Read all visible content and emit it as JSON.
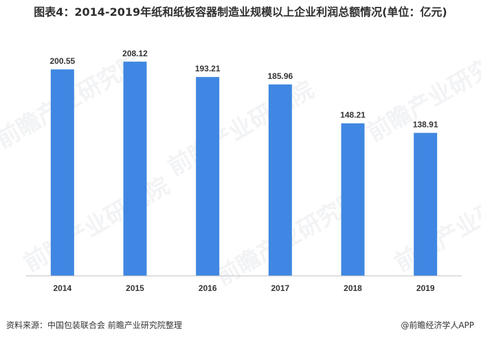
{
  "title": "图表4：2014-2019年纸和纸板容器制造业规模以上企业利润总额情况(单位：亿元)",
  "footer": {
    "source": "资料来源：中国包装联合会 前瞻产业研究院整理",
    "brand": "@前瞻经济学人APP"
  },
  "watermark": "前瞻产业研究院",
  "colors": {
    "bar": "#3f87e2",
    "axis": "#bfbfbf",
    "label": "#333333"
  },
  "chart_data": {
    "type": "bar",
    "title": "图表4：2014-2019年纸和纸板容器制造业规模以上企业利润总额情况(单位：亿元)",
    "categories": [
      "2014",
      "2015",
      "2016",
      "2017",
      "2018",
      "2019"
    ],
    "values": [
      200.55,
      208.12,
      193.21,
      185.96,
      148.21,
      138.91
    ],
    "data_labels": [
      "200.55",
      "208.12",
      "193.21",
      "185.96",
      "148.21",
      "138.91"
    ],
    "xlabel": "",
    "ylabel": "",
    "ylim": [
      0,
      220
    ],
    "grid": false,
    "legend": "none"
  }
}
